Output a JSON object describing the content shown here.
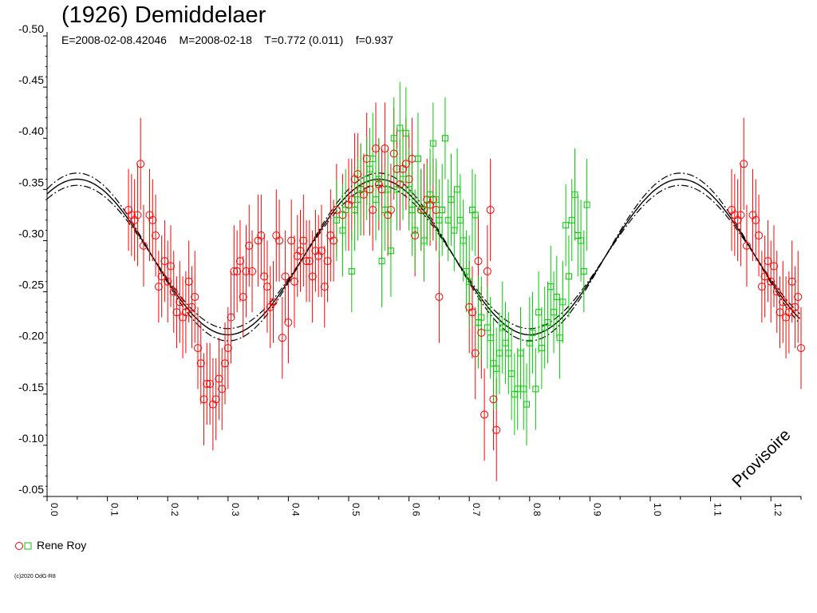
{
  "title": "(1926) Demiddelaer",
  "params": "E=2008-02-08.42046    M=2008-02-18    T=0.772 (0.011)    f=0.937",
  "watermark": "Provisoire",
  "legend": {
    "label": "Rene Roy",
    "colors": [
      "#ff0000",
      "#00cc00"
    ]
  },
  "copyright": "(c)2020 OdG-R8",
  "chart_data": {
    "type": "scatter",
    "xlabel": "",
    "ylabel": "",
    "xlim": [
      0.0,
      1.25
    ],
    "ylim": [
      -0.5,
      -0.05
    ],
    "y_reversed": true,
    "y_ticks": [
      "-0.50",
      "-0.45",
      "-0.40",
      "-0.35",
      "-0.30",
      "-0.25",
      "-0.20",
      "-0.15",
      "-0.10",
      "-0.05"
    ],
    "y_tick_values": [
      -0.5,
      -0.45,
      -0.4,
      -0.35,
      -0.3,
      -0.25,
      -0.2,
      -0.15,
      -0.1,
      -0.05
    ],
    "x_ticks": [
      "0.0",
      "0.1",
      "0.2",
      "0.3",
      "0.4",
      "0.5",
      "0.6",
      "0.7",
      "0.8",
      "0.9",
      "1.0",
      "1.1",
      "1.2"
    ],
    "x_tick_values": [
      0,
      0.1,
      0.2,
      0.3,
      0.4,
      0.5,
      0.6,
      0.7,
      0.8,
      0.9,
      1.0,
      1.1,
      1.2
    ],
    "model": {
      "mean": -0.284,
      "amplitude": 0.076,
      "phase_of_max": 0.05,
      "cycles_per_phase": 2,
      "envelope": 0.006
    },
    "series": [
      {
        "color": "#ff0000",
        "marker": "circle",
        "points": [
          [
            0.135,
            -0.33,
            0.04
          ],
          [
            0.14,
            -0.325,
            0.04
          ],
          [
            0.145,
            -0.32,
            0.04
          ],
          [
            0.15,
            -0.325,
            0.05
          ],
          [
            0.155,
            -0.375,
            0.045
          ],
          [
            0.16,
            -0.295,
            0.04
          ],
          [
            0.17,
            -0.325,
            0.045
          ],
          [
            0.175,
            -0.32,
            0.04
          ],
          [
            0.18,
            -0.305,
            0.04
          ],
          [
            0.185,
            -0.255,
            0.035
          ],
          [
            0.19,
            -0.265,
            0.04
          ],
          [
            0.195,
            -0.28,
            0.04
          ],
          [
            0.2,
            -0.26,
            0.04
          ],
          [
            0.205,
            -0.275,
            0.04
          ],
          [
            0.21,
            -0.25,
            0.04
          ],
          [
            0.215,
            -0.23,
            0.035
          ],
          [
            0.22,
            -0.24,
            0.04
          ],
          [
            0.225,
            -0.225,
            0.04
          ],
          [
            0.23,
            -0.23,
            0.04
          ],
          [
            0.235,
            -0.26,
            0.04
          ],
          [
            0.24,
            -0.235,
            0.04
          ],
          [
            0.245,
            -0.245,
            0.045
          ],
          [
            0.25,
            -0.195,
            0.04
          ],
          [
            0.255,
            -0.18,
            0.04
          ],
          [
            0.26,
            -0.145,
            0.045
          ],
          [
            0.265,
            -0.16,
            0.04
          ],
          [
            0.27,
            -0.16,
            0.04
          ],
          [
            0.275,
            -0.14,
            0.045
          ],
          [
            0.28,
            -0.145,
            0.04
          ],
          [
            0.285,
            -0.165,
            0.04
          ],
          [
            0.29,
            -0.155,
            0.04
          ],
          [
            0.295,
            -0.18,
            0.04
          ],
          [
            0.3,
            -0.195,
            0.04
          ],
          [
            0.305,
            -0.225,
            0.045
          ],
          [
            0.31,
            -0.27,
            0.045
          ],
          [
            0.315,
            -0.27,
            0.04
          ],
          [
            0.32,
            -0.28,
            0.04
          ],
          [
            0.325,
            -0.245,
            0.04
          ],
          [
            0.33,
            -0.27,
            0.045
          ],
          [
            0.335,
            -0.295,
            0.04
          ],
          [
            0.34,
            -0.27,
            0.04
          ],
          [
            0.35,
            -0.3,
            0.045
          ],
          [
            0.355,
            -0.305,
            0.04
          ],
          [
            0.36,
            -0.265,
            0.04
          ],
          [
            0.365,
            -0.255,
            0.045
          ],
          [
            0.37,
            -0.235,
            0.04
          ],
          [
            0.375,
            -0.24,
            0.04
          ],
          [
            0.38,
            -0.305,
            0.045
          ],
          [
            0.385,
            -0.3,
            0.04
          ],
          [
            0.39,
            -0.205,
            0.04
          ],
          [
            0.395,
            -0.265,
            0.045
          ],
          [
            0.4,
            -0.22,
            0.04
          ],
          [
            0.405,
            -0.3,
            0.04
          ],
          [
            0.41,
            -0.26,
            0.045
          ],
          [
            0.415,
            -0.285,
            0.04
          ],
          [
            0.42,
            -0.29,
            0.04
          ],
          [
            0.425,
            -0.3,
            0.045
          ],
          [
            0.43,
            -0.28,
            0.04
          ],
          [
            0.435,
            -0.28,
            0.04
          ],
          [
            0.44,
            -0.265,
            0.045
          ],
          [
            0.445,
            -0.29,
            0.04
          ],
          [
            0.45,
            -0.285,
            0.04
          ],
          [
            0.455,
            -0.29,
            0.045
          ],
          [
            0.46,
            -0.255,
            0.04
          ],
          [
            0.465,
            -0.28,
            0.04
          ],
          [
            0.47,
            -0.305,
            0.045
          ],
          [
            0.475,
            -0.3,
            0.04
          ],
          [
            0.48,
            -0.33,
            0.045
          ],
          [
            0.49,
            -0.325,
            0.04
          ],
          [
            0.5,
            -0.335,
            0.045
          ],
          [
            0.505,
            -0.34,
            0.04
          ],
          [
            0.51,
            -0.36,
            0.045
          ],
          [
            0.515,
            -0.365,
            0.04
          ],
          [
            0.52,
            -0.35,
            0.045
          ],
          [
            0.525,
            -0.345,
            0.04
          ],
          [
            0.53,
            -0.38,
            0.045
          ],
          [
            0.535,
            -0.35,
            0.045
          ],
          [
            0.54,
            -0.33,
            0.04
          ],
          [
            0.545,
            -0.39,
            0.045
          ],
          [
            0.55,
            -0.355,
            0.045
          ],
          [
            0.555,
            -0.35,
            0.04
          ],
          [
            0.56,
            -0.39,
            0.045
          ],
          [
            0.565,
            -0.325,
            0.04
          ],
          [
            0.57,
            -0.33,
            0.045
          ],
          [
            0.575,
            -0.385,
            0.045
          ],
          [
            0.58,
            -0.37,
            0.04
          ],
          [
            0.585,
            -0.355,
            0.045
          ],
          [
            0.59,
            -0.37,
            0.04
          ],
          [
            0.595,
            -0.375,
            0.045
          ],
          [
            0.6,
            -0.36,
            0.045
          ],
          [
            0.605,
            -0.38,
            0.04
          ],
          [
            0.61,
            -0.305,
            0.04
          ],
          [
            0.62,
            -0.33,
            0.04
          ],
          [
            0.625,
            -0.33,
            0.045
          ],
          [
            0.63,
            -0.34,
            0.04
          ],
          [
            0.635,
            -0.335,
            0.04
          ],
          [
            0.64,
            -0.34,
            0.04
          ],
          [
            0.645,
            -0.33,
            0.04
          ],
          [
            0.65,
            -0.245,
            0.045
          ],
          [
            0.7,
            -0.235,
            0.045
          ],
          [
            0.705,
            -0.23,
            0.045
          ],
          [
            0.71,
            -0.19,
            0.045
          ],
          [
            0.715,
            -0.28,
            0.045
          ],
          [
            0.72,
            -0.21,
            0.045
          ],
          [
            0.725,
            -0.13,
            0.045
          ],
          [
            0.73,
            -0.27,
            0.045
          ],
          [
            0.735,
            -0.33,
            0.05
          ],
          [
            0.74,
            -0.145,
            0.05
          ],
          [
            0.745,
            -0.115,
            0.05
          ],
          [
            1.135,
            -0.33,
            0.04
          ],
          [
            1.14,
            -0.325,
            0.04
          ],
          [
            1.145,
            -0.32,
            0.04
          ],
          [
            1.15,
            -0.325,
            0.05
          ],
          [
            1.155,
            -0.375,
            0.045
          ],
          [
            1.16,
            -0.295,
            0.04
          ],
          [
            1.17,
            -0.325,
            0.045
          ],
          [
            1.175,
            -0.32,
            0.04
          ],
          [
            1.18,
            -0.305,
            0.04
          ],
          [
            1.185,
            -0.255,
            0.035
          ],
          [
            1.19,
            -0.265,
            0.04
          ],
          [
            1.195,
            -0.28,
            0.04
          ],
          [
            1.2,
            -0.26,
            0.04
          ],
          [
            1.205,
            -0.275,
            0.04
          ],
          [
            1.21,
            -0.25,
            0.04
          ],
          [
            1.215,
            -0.23,
            0.035
          ],
          [
            1.22,
            -0.24,
            0.04
          ],
          [
            1.225,
            -0.225,
            0.04
          ],
          [
            1.23,
            -0.23,
            0.04
          ],
          [
            1.235,
            -0.26,
            0.04
          ],
          [
            1.24,
            -0.235,
            0.04
          ],
          [
            1.245,
            -0.245,
            0.045
          ],
          [
            1.25,
            -0.195,
            0.04
          ]
        ]
      },
      {
        "color": "#00cc00",
        "marker": "square",
        "points": [
          [
            0.48,
            -0.32,
            0.04
          ],
          [
            0.49,
            -0.31,
            0.045
          ],
          [
            0.495,
            -0.33,
            0.04
          ],
          [
            0.505,
            -0.27,
            0.04
          ],
          [
            0.51,
            -0.33,
            0.04
          ],
          [
            0.515,
            -0.34,
            0.04
          ],
          [
            0.52,
            -0.35,
            0.045
          ],
          [
            0.53,
            -0.36,
            0.04
          ],
          [
            0.535,
            -0.37,
            0.04
          ],
          [
            0.54,
            -0.38,
            0.045
          ],
          [
            0.545,
            -0.34,
            0.04
          ],
          [
            0.55,
            -0.36,
            0.04
          ],
          [
            0.555,
            -0.28,
            0.045
          ],
          [
            0.56,
            -0.33,
            0.04
          ],
          [
            0.565,
            -0.35,
            0.04
          ],
          [
            0.57,
            -0.29,
            0.045
          ],
          [
            0.575,
            -0.4,
            0.04
          ],
          [
            0.58,
            -0.35,
            0.04
          ],
          [
            0.585,
            -0.41,
            0.045
          ],
          [
            0.59,
            -0.36,
            0.04
          ],
          [
            0.595,
            -0.405,
            0.045
          ],
          [
            0.6,
            -0.35,
            0.04
          ],
          [
            0.605,
            -0.33,
            0.045
          ],
          [
            0.61,
            -0.31,
            0.04
          ],
          [
            0.615,
            -0.38,
            0.045
          ],
          [
            0.62,
            -0.33,
            0.04
          ],
          [
            0.625,
            -0.3,
            0.04
          ],
          [
            0.63,
            -0.335,
            0.04
          ],
          [
            0.635,
            -0.345,
            0.045
          ],
          [
            0.64,
            -0.395,
            0.04
          ],
          [
            0.645,
            -0.34,
            0.04
          ],
          [
            0.65,
            -0.32,
            0.04
          ],
          [
            0.655,
            -0.33,
            0.045
          ],
          [
            0.66,
            -0.4,
            0.04
          ],
          [
            0.665,
            -0.32,
            0.04
          ],
          [
            0.67,
            -0.34,
            0.045
          ],
          [
            0.675,
            -0.31,
            0.04
          ],
          [
            0.68,
            -0.35,
            0.04
          ],
          [
            0.685,
            -0.32,
            0.045
          ],
          [
            0.69,
            -0.3,
            0.04
          ],
          [
            0.695,
            -0.27,
            0.04
          ],
          [
            0.7,
            -0.26,
            0.045
          ],
          [
            0.705,
            -0.33,
            0.04
          ],
          [
            0.71,
            -0.325,
            0.04
          ],
          [
            0.715,
            -0.22,
            0.045
          ],
          [
            0.72,
            -0.225,
            0.04
          ],
          [
            0.73,
            -0.215,
            0.04
          ],
          [
            0.735,
            -0.205,
            0.04
          ],
          [
            0.74,
            -0.18,
            0.045
          ],
          [
            0.745,
            -0.175,
            0.04
          ],
          [
            0.75,
            -0.19,
            0.04
          ],
          [
            0.755,
            -0.215,
            0.045
          ],
          [
            0.76,
            -0.2,
            0.04
          ],
          [
            0.765,
            -0.19,
            0.04
          ],
          [
            0.77,
            -0.17,
            0.045
          ],
          [
            0.775,
            -0.15,
            0.04
          ],
          [
            0.78,
            -0.155,
            0.04
          ],
          [
            0.785,
            -0.19,
            0.045
          ],
          [
            0.79,
            -0.155,
            0.04
          ],
          [
            0.795,
            -0.14,
            0.04
          ],
          [
            0.8,
            -0.2,
            0.045
          ],
          [
            0.805,
            -0.21,
            0.04
          ],
          [
            0.81,
            -0.155,
            0.04
          ],
          [
            0.815,
            -0.23,
            0.04
          ],
          [
            0.82,
            -0.195,
            0.04
          ],
          [
            0.825,
            -0.215,
            0.04
          ],
          [
            0.83,
            -0.22,
            0.04
          ],
          [
            0.835,
            -0.255,
            0.04
          ],
          [
            0.84,
            -0.23,
            0.04
          ],
          [
            0.845,
            -0.245,
            0.04
          ],
          [
            0.85,
            -0.205,
            0.04
          ],
          [
            0.855,
            -0.24,
            0.04
          ],
          [
            0.86,
            -0.315,
            0.04
          ],
          [
            0.865,
            -0.265,
            0.04
          ],
          [
            0.87,
            -0.32,
            0.04
          ],
          [
            0.875,
            -0.345,
            0.045
          ],
          [
            0.88,
            -0.305,
            0.04
          ],
          [
            0.885,
            -0.3,
            0.04
          ],
          [
            0.89,
            -0.27,
            0.04
          ],
          [
            0.895,
            -0.335,
            0.045
          ]
        ]
      }
    ]
  }
}
